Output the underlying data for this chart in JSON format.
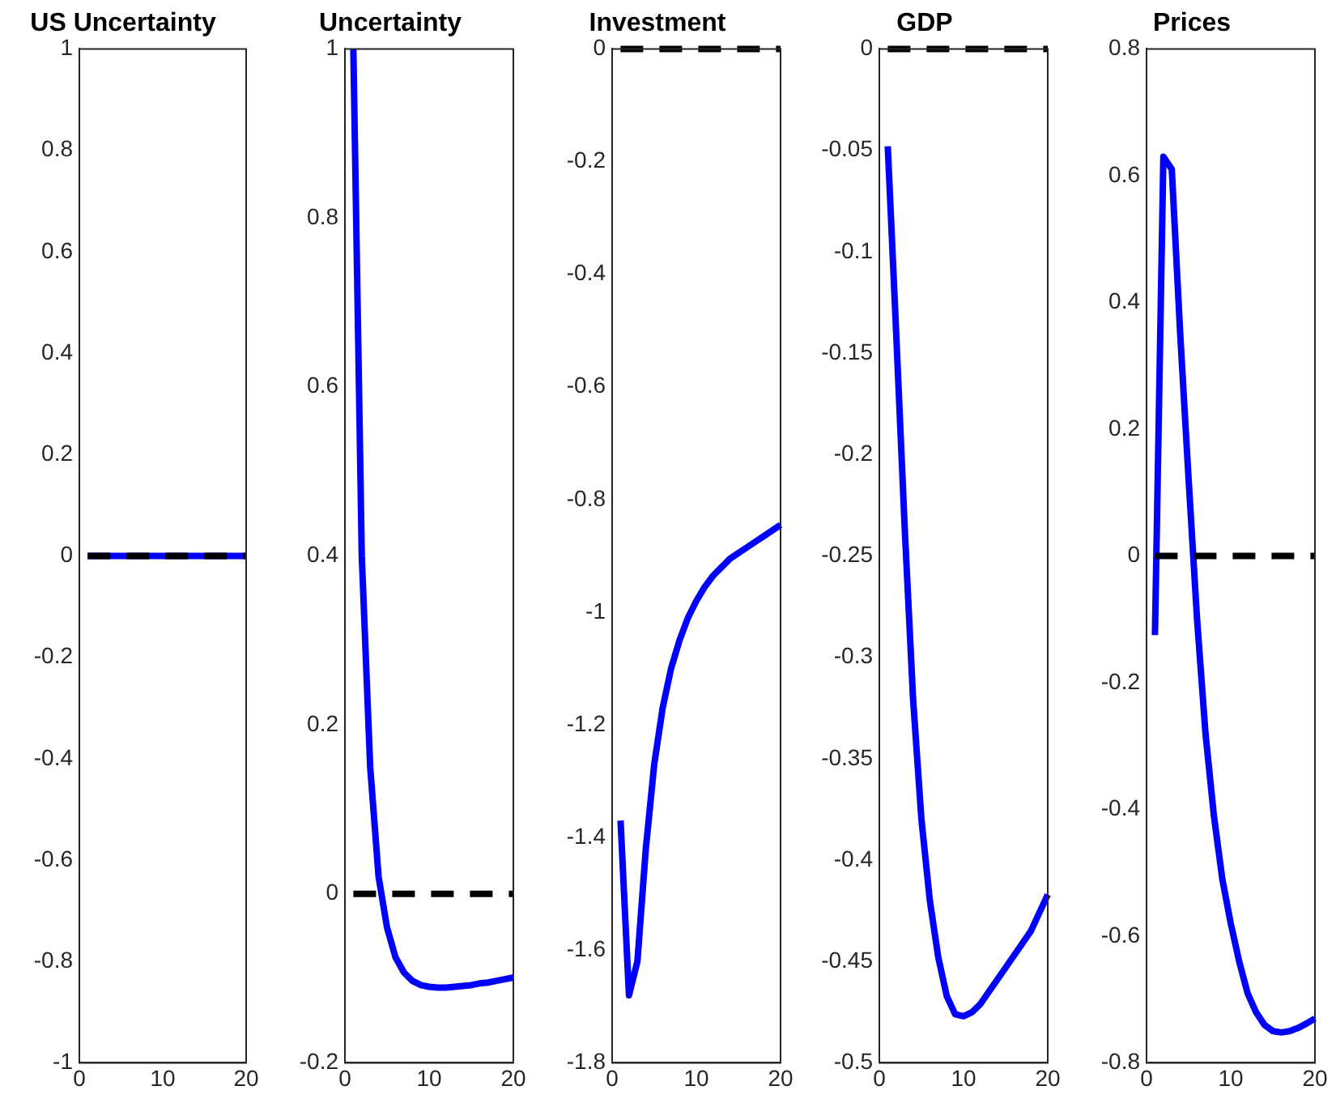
{
  "chart_data": [
    {
      "type": "line",
      "title": "US Uncertainty",
      "x": [
        1,
        2,
        3,
        4,
        5,
        6,
        7,
        8,
        9,
        10,
        11,
        12,
        13,
        14,
        15,
        16,
        17,
        18,
        19,
        20
      ],
      "xlim": [
        0,
        20
      ],
      "xticks": [
        0,
        10,
        20
      ],
      "ylim": [
        -1,
        1
      ],
      "yticks": [
        -1,
        -0.8,
        -0.6,
        -0.4,
        -0.2,
        0,
        0.2,
        0.4,
        0.6,
        0.8,
        1
      ],
      "grid": false,
      "series": [
        {
          "color": "#0000ff",
          "values": [
            0,
            0,
            0,
            0,
            0,
            0,
            0,
            0,
            0,
            0,
            0,
            0,
            0,
            0,
            0,
            0,
            0,
            0,
            0,
            0
          ]
        },
        {
          "color": "#000000",
          "line_style": "dashed",
          "values": [
            0,
            0,
            0,
            0,
            0,
            0,
            0,
            0,
            0,
            0,
            0,
            0,
            0,
            0,
            0,
            0,
            0,
            0,
            0,
            0
          ]
        }
      ]
    },
    {
      "type": "line",
      "title": "Uncertainty",
      "x": [
        1,
        2,
        3,
        4,
        5,
        6,
        7,
        8,
        9,
        10,
        11,
        12,
        13,
        14,
        15,
        16,
        17,
        18,
        19,
        20
      ],
      "xlim": [
        0,
        20
      ],
      "xticks": [
        0,
        10,
        20
      ],
      "ylim": [
        -0.2,
        1
      ],
      "yticks": [
        -0.2,
        0,
        0.2,
        0.4,
        0.6,
        0.8,
        1
      ],
      "grid": false,
      "series": [
        {
          "color": "#0000ff",
          "values": [
            1,
            0.4,
            0.15,
            0.02,
            -0.04,
            -0.075,
            -0.093,
            -0.103,
            -0.108,
            -0.11,
            -0.111,
            -0.111,
            -0.11,
            -0.109,
            -0.108,
            -0.106,
            -0.105,
            -0.103,
            -0.101,
            -0.099
          ]
        },
        {
          "color": "#000000",
          "line_style": "dashed",
          "values": [
            0,
            0,
            0,
            0,
            0,
            0,
            0,
            0,
            0,
            0,
            0,
            0,
            0,
            0,
            0,
            0,
            0,
            0,
            0,
            0
          ]
        }
      ]
    },
    {
      "type": "line",
      "title": "Investment",
      "x": [
        1,
        2,
        3,
        4,
        5,
        6,
        7,
        8,
        9,
        10,
        11,
        12,
        13,
        14,
        15,
        16,
        17,
        18,
        19,
        20
      ],
      "xlim": [
        0,
        20
      ],
      "xticks": [
        0,
        10,
        20
      ],
      "ylim": [
        -1.8,
        0
      ],
      "yticks": [
        -1.8,
        -1.6,
        -1.4,
        -1.2,
        -1,
        -0.8,
        -0.6,
        -0.4,
        -0.2,
        0
      ],
      "grid": false,
      "series": [
        {
          "color": "#0000ff",
          "values": [
            -1.37,
            -1.68,
            -1.62,
            -1.42,
            -1.27,
            -1.17,
            -1.1,
            -1.05,
            -1.01,
            -0.98,
            -0.955,
            -0.935,
            -0.92,
            -0.905,
            -0.895,
            -0.885,
            -0.875,
            -0.865,
            -0.855,
            -0.845
          ]
        },
        {
          "color": "#000000",
          "line_style": "dashed",
          "values": [
            0,
            0,
            0,
            0,
            0,
            0,
            0,
            0,
            0,
            0,
            0,
            0,
            0,
            0,
            0,
            0,
            0,
            0,
            0,
            0
          ]
        }
      ]
    },
    {
      "type": "line",
      "title": "GDP",
      "x": [
        1,
        2,
        3,
        4,
        5,
        6,
        7,
        8,
        9,
        10,
        11,
        12,
        13,
        14,
        15,
        16,
        17,
        18,
        19,
        20
      ],
      "xlim": [
        0,
        20
      ],
      "xticks": [
        0,
        10,
        20
      ],
      "ylim": [
        -0.5,
        0
      ],
      "yticks": [
        -0.5,
        -0.45,
        -0.4,
        -0.35,
        -0.3,
        -0.25,
        -0.2,
        -0.15,
        -0.1,
        -0.05,
        0
      ],
      "grid": false,
      "series": [
        {
          "color": "#0000ff",
          "values": [
            -0.048,
            -0.14,
            -0.235,
            -0.32,
            -0.38,
            -0.42,
            -0.448,
            -0.467,
            -0.476,
            -0.477,
            -0.475,
            -0.471,
            -0.465,
            -0.459,
            -0.453,
            -0.447,
            -0.441,
            -0.435,
            -0.426,
            -0.417
          ]
        },
        {
          "color": "#000000",
          "line_style": "dashed",
          "values": [
            0,
            0,
            0,
            0,
            0,
            0,
            0,
            0,
            0,
            0,
            0,
            0,
            0,
            0,
            0,
            0,
            0,
            0,
            0,
            0
          ]
        }
      ]
    },
    {
      "type": "line",
      "title": "Prices",
      "x": [
        1,
        2,
        3,
        4,
        5,
        6,
        7,
        8,
        9,
        10,
        11,
        12,
        13,
        14,
        15,
        16,
        17,
        18,
        19,
        20
      ],
      "xlim": [
        0,
        20
      ],
      "xticks": [
        0,
        10,
        20
      ],
      "ylim": [
        -0.8,
        0.8
      ],
      "yticks": [
        -0.8,
        -0.6,
        -0.4,
        -0.2,
        0,
        0.2,
        0.4,
        0.6,
        0.8
      ],
      "grid": false,
      "series": [
        {
          "color": "#0000ff",
          "values": [
            -0.125,
            0.63,
            0.61,
            0.35,
            0.12,
            -0.1,
            -0.28,
            -0.41,
            -0.51,
            -0.58,
            -0.64,
            -0.69,
            -0.72,
            -0.74,
            -0.75,
            -0.752,
            -0.75,
            -0.745,
            -0.738,
            -0.73
          ]
        },
        {
          "color": "#000000",
          "line_style": "dashed",
          "values": [
            0,
            0,
            0,
            0,
            0,
            0,
            0,
            0,
            0,
            0,
            0,
            0,
            0,
            0,
            0,
            0,
            0,
            0,
            0,
            0
          ]
        }
      ]
    }
  ]
}
